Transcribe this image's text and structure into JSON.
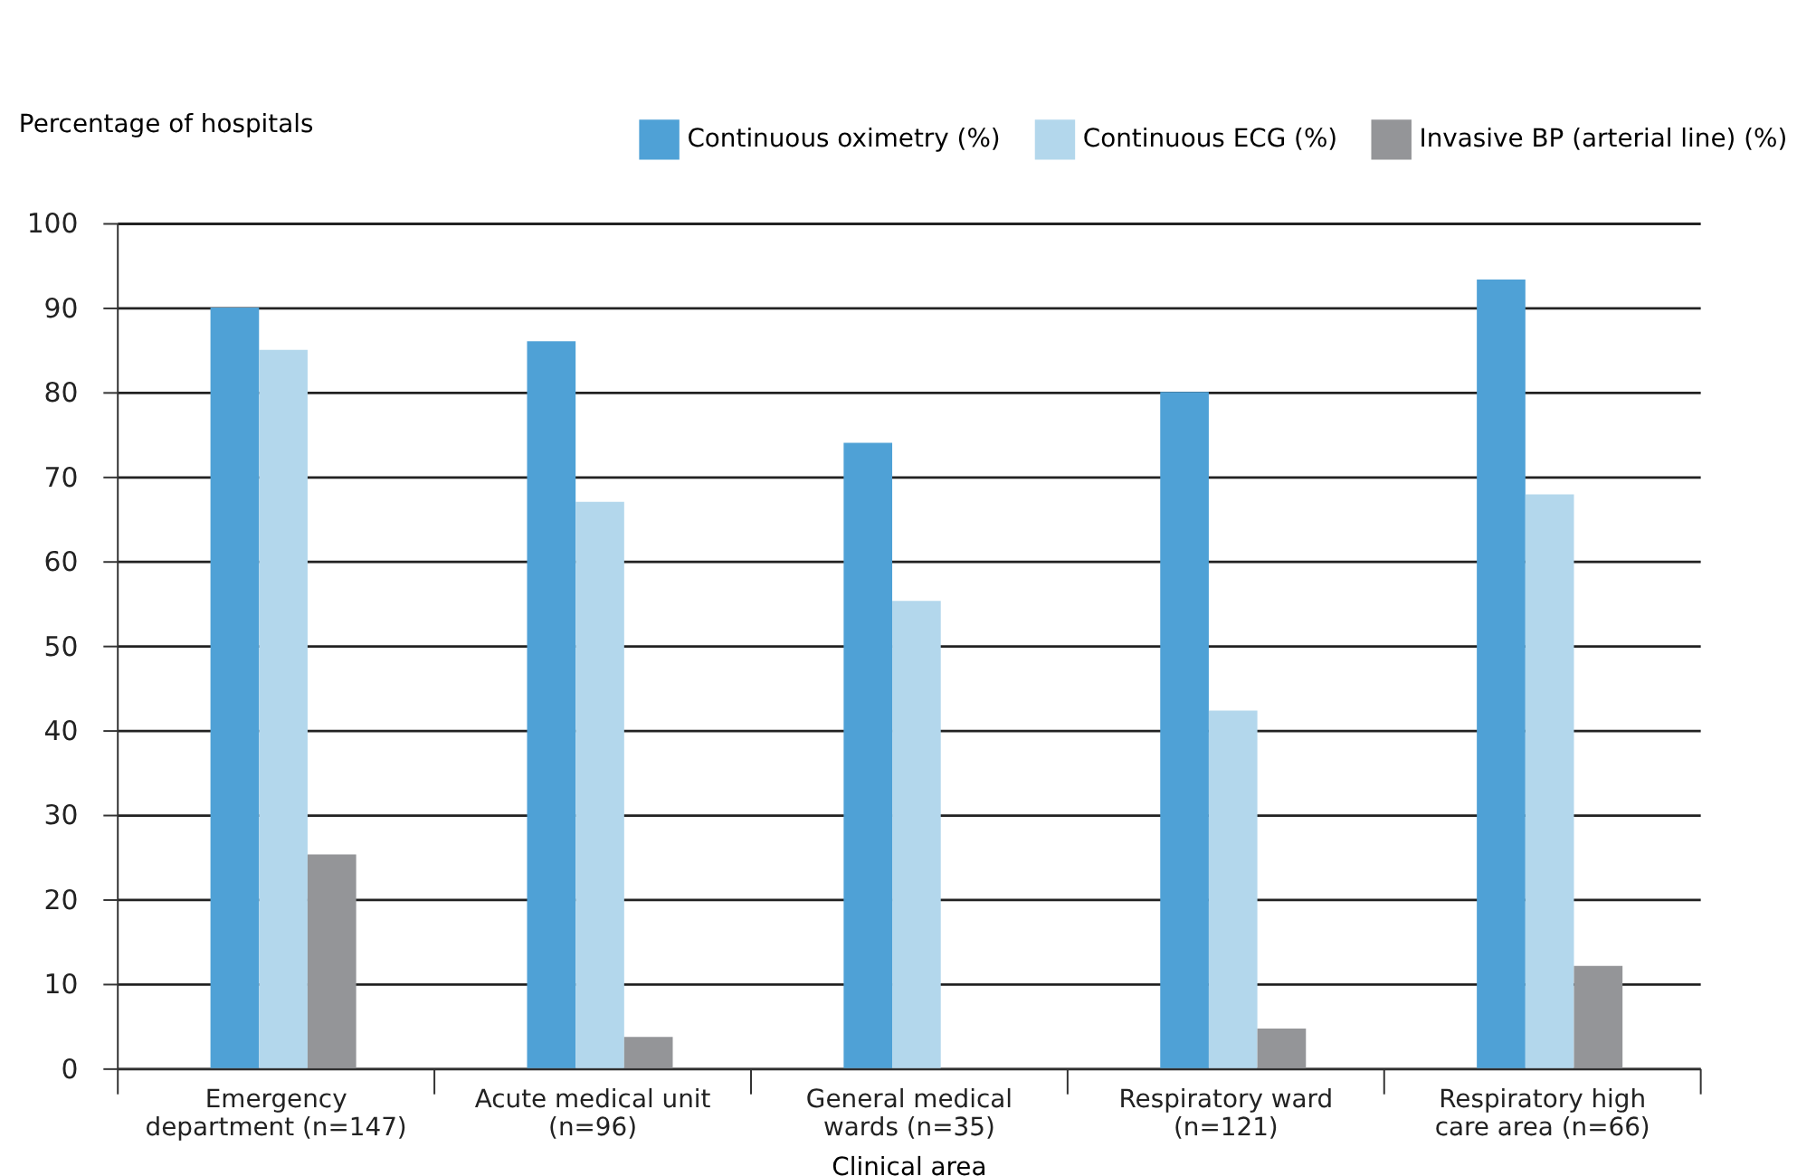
{
  "chart_data": {
    "type": "bar",
    "ylabel": "Percentage of hospitals",
    "xlabel": "Clinical area",
    "categories": [
      "Emergency department (n=147)",
      "Acute medical unit (n=96)",
      "General medical wards (n=35)",
      "Respiratory ward (n=121)",
      "Respiratory high care area (n=66)"
    ],
    "series": [
      {
        "name": "Continuous oximetry (%)",
        "color": "#4fa1d6",
        "values": [
          90,
          86,
          74,
          80,
          93.3
        ]
      },
      {
        "name": "Continuous ECG (%)",
        "color": "#b3d7ec",
        "values": [
          85,
          67,
          55.3,
          42.3,
          67.9
        ]
      },
      {
        "name": "Invasive BP (arterial line) (%)",
        "color": "#949598",
        "values": [
          25.3,
          3.7,
          0,
          4.7,
          12.1
        ]
      }
    ],
    "ylim": [
      0,
      100
    ],
    "yticks": [
      0,
      10,
      20,
      30,
      40,
      50,
      60,
      70,
      80,
      90,
      100
    ],
    "grid": "y",
    "legend": "top right"
  }
}
